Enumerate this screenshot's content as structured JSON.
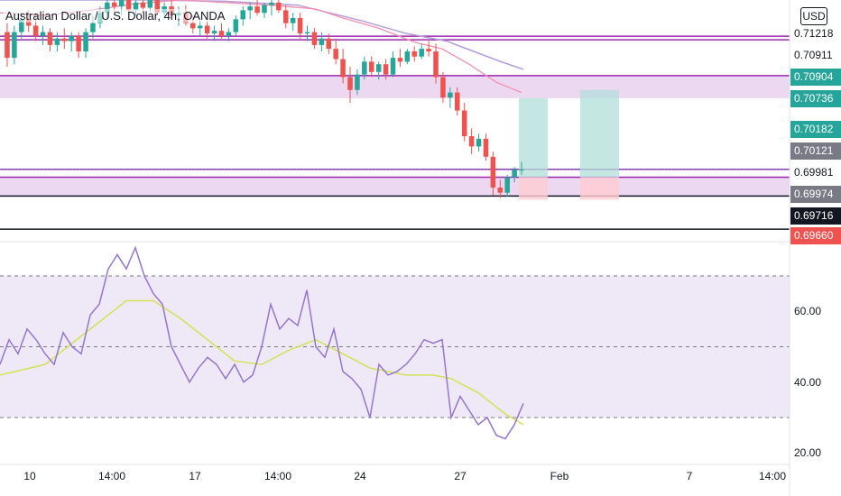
{
  "header": {
    "title": "Australian Dollar / U.S. Dollar, 4h, OANDA",
    "currency_badge": "USD"
  },
  "colors": {
    "up": "#26a69a",
    "down": "#ef5350",
    "zone_line": "#9c27b0",
    "zone_fill": "#e1bee7",
    "ma_fast": "#f48fb1",
    "ma_slow": "#b39ddb",
    "rsi_line": "#9575cd",
    "rsi_ma": "#d4e157",
    "rsi_band": "#ede7f6",
    "target": "#b2dfdb",
    "stop": "#ffcdd2"
  },
  "price_labels": [
    {
      "text": "0.71218",
      "price": 0.71218,
      "bg": "#ffffff",
      "fg": "#131722"
    },
    {
      "text": "0.70911",
      "price": 0.70911,
      "bg": "#ffffff",
      "fg": "#131722"
    },
    {
      "text": "0.70904",
      "price": 0.70904,
      "bg": "#26a69a",
      "fg": "#ffffff"
    },
    {
      "text": "0.70736",
      "price": 0.70736,
      "bg": "#26a69a",
      "fg": "#ffffff"
    },
    {
      "text": "0.70182",
      "price": 0.70182,
      "bg": "#26a69a",
      "fg": "#ffffff"
    },
    {
      "text": "0.70121",
      "price": 0.70121,
      "bg": "#787b86",
      "fg": "#ffffff"
    },
    {
      "text": "0.69981",
      "price": 0.69981,
      "bg": "#ffffff",
      "fg": "#131722"
    },
    {
      "text": "0.69974",
      "price": 0.69974,
      "bg": "#787b86",
      "fg": "#ffffff"
    },
    {
      "text": "0.69716",
      "price": 0.69716,
      "bg": "#131722",
      "fg": "#ffffff"
    },
    {
      "text": "0.69660",
      "price": 0.6966,
      "bg": "#ef5350",
      "fg": "#ffffff"
    }
  ],
  "rsi_axis": {
    "ticks": [
      "60.00",
      "40.00",
      "20.00"
    ],
    "tick_values": [
      60,
      40,
      20
    ],
    "upper": 70,
    "mid": 50,
    "lower": 30
  },
  "time_axis": {
    "labels": [
      "10",
      "14:00",
      "17",
      "14:00",
      "24",
      "27",
      "Feb",
      "7",
      "14:00"
    ]
  },
  "chart_data": {
    "type": "candlestick",
    "symbol": "AUDUSD",
    "timeframe": "4h",
    "price_range": [
      0.6964,
      0.715
    ],
    "horizontal_levels": [
      0.71218,
      0.7119,
      0.70911,
      0.70182,
      0.70121,
      0.69974,
      0.69716
    ],
    "zones": [
      {
        "top": 0.70911,
        "bottom": 0.70736
      },
      {
        "top": 0.70121,
        "bottom": 0.69974
      }
    ],
    "position_boxes": [
      {
        "entry": 0.70121,
        "target": 0.70736,
        "stop": 0.69974
      },
      {
        "entry": 0.70121,
        "target": 0.708,
        "stop": 0.69974
      }
    ],
    "candles": [
      [
        0.7125,
        0.7132,
        0.7098,
        0.7105
      ],
      [
        0.7105,
        0.713,
        0.71,
        0.7125
      ],
      [
        0.7125,
        0.714,
        0.712,
        0.7135
      ],
      [
        0.7135,
        0.7142,
        0.7125,
        0.713
      ],
      [
        0.713,
        0.714,
        0.7118,
        0.7122
      ],
      [
        0.7122,
        0.713,
        0.7115,
        0.7125
      ],
      [
        0.7125,
        0.7128,
        0.711,
        0.7115
      ],
      [
        0.7115,
        0.7125,
        0.711,
        0.712
      ],
      [
        0.712,
        0.7128,
        0.7112,
        0.7118
      ],
      [
        0.7118,
        0.7125,
        0.711,
        0.7122
      ],
      [
        0.7122,
        0.7125,
        0.7105,
        0.711
      ],
      [
        0.711,
        0.7128,
        0.7105,
        0.7125
      ],
      [
        0.7125,
        0.7138,
        0.712,
        0.7132
      ],
      [
        0.7132,
        0.7145,
        0.7128,
        0.714
      ],
      [
        0.714,
        0.715,
        0.7135,
        0.7148
      ],
      [
        0.7148,
        0.7152,
        0.714,
        0.7145
      ],
      [
        0.7145,
        0.7152,
        0.7138,
        0.715
      ],
      [
        0.715,
        0.7152,
        0.714,
        0.7142
      ],
      [
        0.7142,
        0.715,
        0.7138,
        0.7148
      ],
      [
        0.7148,
        0.7152,
        0.714,
        0.7144
      ],
      [
        0.7144,
        0.7152,
        0.714,
        0.715
      ],
      [
        0.715,
        0.7152,
        0.7138,
        0.714
      ],
      [
        0.714,
        0.7148,
        0.7135,
        0.7145
      ],
      [
        0.7145,
        0.715,
        0.7135,
        0.7138
      ],
      [
        0.7138,
        0.7145,
        0.713,
        0.714
      ],
      [
        0.714,
        0.7146,
        0.713,
        0.7132
      ],
      [
        0.7132,
        0.7138,
        0.7124,
        0.7128
      ],
      [
        0.7128,
        0.7134,
        0.7122,
        0.713
      ],
      [
        0.713,
        0.7134,
        0.712,
        0.7124
      ],
      [
        0.7124,
        0.713,
        0.7118,
        0.7126
      ],
      [
        0.7126,
        0.7132,
        0.712,
        0.7122
      ],
      [
        0.7122,
        0.7128,
        0.7118,
        0.7125
      ],
      [
        0.7125,
        0.7138,
        0.7122,
        0.7135
      ],
      [
        0.7135,
        0.7145,
        0.713,
        0.7142
      ],
      [
        0.7142,
        0.7148,
        0.7135,
        0.7145
      ],
      [
        0.7145,
        0.715,
        0.7138,
        0.714
      ],
      [
        0.714,
        0.7148,
        0.7136,
        0.7146
      ],
      [
        0.7146,
        0.715,
        0.7138,
        0.7148
      ],
      [
        0.7148,
        0.715,
        0.714,
        0.7142
      ],
      [
        0.7142,
        0.7146,
        0.7128,
        0.7132
      ],
      [
        0.7132,
        0.714,
        0.7126,
        0.7136
      ],
      [
        0.7136,
        0.714,
        0.712,
        0.7124
      ],
      [
        0.7124,
        0.713,
        0.7118,
        0.7125
      ],
      [
        0.7125,
        0.7128,
        0.7112,
        0.7115
      ],
      [
        0.7115,
        0.7125,
        0.711,
        0.712
      ],
      [
        0.712,
        0.7124,
        0.7108,
        0.7112
      ],
      [
        0.7112,
        0.712,
        0.71,
        0.7104
      ],
      [
        0.7104,
        0.7112,
        0.7085,
        0.709
      ],
      [
        0.709,
        0.7098,
        0.707,
        0.708
      ],
      [
        0.708,
        0.7096,
        0.7076,
        0.7092
      ],
      [
        0.7092,
        0.7106,
        0.7088,
        0.7102
      ],
      [
        0.7102,
        0.7106,
        0.709,
        0.7094
      ],
      [
        0.7094,
        0.7102,
        0.7088,
        0.71
      ],
      [
        0.71,
        0.7104,
        0.7088,
        0.7092
      ],
      [
        0.7092,
        0.711,
        0.709,
        0.7105
      ],
      [
        0.7105,
        0.7112,
        0.7098,
        0.7102
      ],
      [
        0.7102,
        0.7112,
        0.71,
        0.711
      ],
      [
        0.711,
        0.7114,
        0.7102,
        0.7106
      ],
      [
        0.7106,
        0.7116,
        0.7104,
        0.7112
      ],
      [
        0.7112,
        0.7118,
        0.7106,
        0.711
      ],
      [
        0.711,
        0.7116,
        0.7085,
        0.709
      ],
      [
        0.709,
        0.7094,
        0.707,
        0.7074
      ],
      [
        0.7074,
        0.7082,
        0.7066,
        0.7078
      ],
      [
        0.7078,
        0.7082,
        0.706,
        0.7064
      ],
      [
        0.7064,
        0.707,
        0.704,
        0.7044
      ],
      [
        0.7044,
        0.705,
        0.703,
        0.7036
      ],
      [
        0.7036,
        0.7046,
        0.7032,
        0.7042
      ],
      [
        0.7042,
        0.7046,
        0.7025,
        0.7028
      ],
      [
        0.7028,
        0.7032,
        0.6998,
        0.7004
      ],
      [
        0.7004,
        0.701,
        0.6996,
        0.7
      ],
      [
        0.7,
        0.7014,
        0.6997,
        0.7012
      ],
      [
        0.7012,
        0.702,
        0.7008,
        0.7018
      ],
      [
        0.7018,
        0.7024,
        0.7014,
        0.7018
      ]
    ],
    "ma_fast": [
      [
        0,
        0.714
      ],
      [
        50,
        0.7138
      ],
      [
        100,
        0.7142
      ],
      [
        150,
        0.7147
      ],
      [
        200,
        0.715
      ],
      [
        250,
        0.7148
      ],
      [
        300,
        0.7146
      ],
      [
        350,
        0.7143
      ],
      [
        380,
        0.7136
      ],
      [
        420,
        0.7128
      ],
      [
        460,
        0.7117
      ],
      [
        490,
        0.7112
      ],
      [
        520,
        0.71
      ],
      [
        550,
        0.7086
      ],
      [
        578,
        0.7078
      ]
    ],
    "ma_slow": [
      [
        0,
        0.715
      ],
      [
        80,
        0.715
      ],
      [
        160,
        0.715
      ],
      [
        250,
        0.7149
      ],
      [
        330,
        0.7146
      ],
      [
        400,
        0.7134
      ],
      [
        450,
        0.7124
      ],
      [
        495,
        0.7118
      ],
      [
        525,
        0.711
      ],
      [
        555,
        0.7102
      ],
      [
        580,
        0.7096
      ]
    ],
    "rsi": [
      [
        0,
        45
      ],
      [
        10,
        52
      ],
      [
        20,
        48
      ],
      [
        30,
        55
      ],
      [
        40,
        52
      ],
      [
        50,
        48
      ],
      [
        60,
        45
      ],
      [
        70,
        54
      ],
      [
        80,
        50
      ],
      [
        90,
        48
      ],
      [
        100,
        59
      ],
      [
        110,
        62
      ],
      [
        120,
        72
      ],
      [
        130,
        76
      ],
      [
        140,
        72
      ],
      [
        150,
        78
      ],
      [
        160,
        70
      ],
      [
        170,
        65
      ],
      [
        180,
        62
      ],
      [
        190,
        50
      ],
      [
        200,
        45
      ],
      [
        210,
        40
      ],
      [
        220,
        44
      ],
      [
        230,
        47
      ],
      [
        240,
        45
      ],
      [
        250,
        41
      ],
      [
        260,
        45
      ],
      [
        270,
        40
      ],
      [
        280,
        42
      ],
      [
        290,
        50
      ],
      [
        300,
        62
      ],
      [
        310,
        55
      ],
      [
        320,
        58
      ],
      [
        330,
        56
      ],
      [
        340,
        66
      ],
      [
        350,
        50
      ],
      [
        360,
        47
      ],
      [
        370,
        55
      ],
      [
        380,
        43
      ],
      [
        390,
        41
      ],
      [
        400,
        38
      ],
      [
        410,
        30
      ],
      [
        420,
        45
      ],
      [
        430,
        42
      ],
      [
        440,
        43
      ],
      [
        450,
        45
      ],
      [
        460,
        48
      ],
      [
        470,
        52
      ],
      [
        480,
        51
      ],
      [
        490,
        52
      ],
      [
        500,
        30
      ],
      [
        510,
        36
      ],
      [
        520,
        32
      ],
      [
        530,
        28
      ],
      [
        540,
        30
      ],
      [
        550,
        25
      ],
      [
        560,
        24
      ],
      [
        570,
        28
      ],
      [
        580,
        34
      ]
    ],
    "rsi_ma": [
      [
        0,
        42
      ],
      [
        50,
        45
      ],
      [
        100,
        55
      ],
      [
        140,
        63
      ],
      [
        170,
        63
      ],
      [
        200,
        58
      ],
      [
        230,
        52
      ],
      [
        260,
        46
      ],
      [
        290,
        45
      ],
      [
        320,
        49
      ],
      [
        350,
        52
      ],
      [
        380,
        48
      ],
      [
        410,
        44
      ],
      [
        450,
        42
      ],
      [
        480,
        42
      ],
      [
        500,
        41
      ],
      [
        530,
        37
      ],
      [
        560,
        31
      ],
      [
        580,
        28
      ]
    ]
  }
}
